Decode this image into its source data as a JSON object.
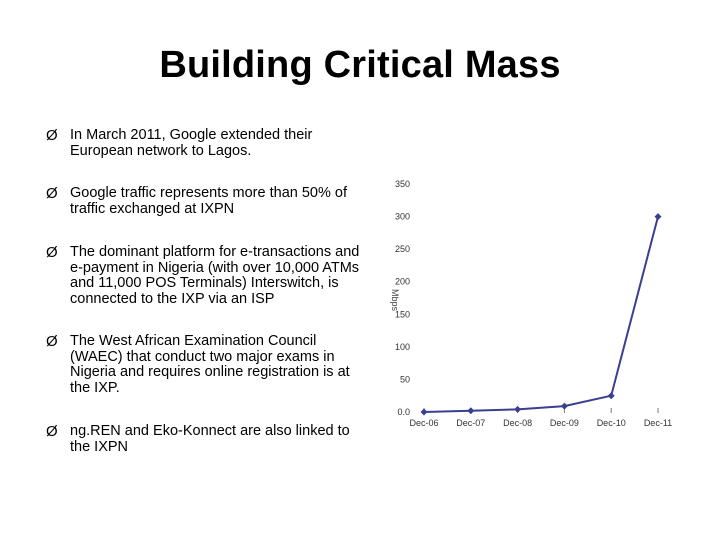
{
  "title": "Building Critical Mass",
  "bullet_marker": "Ø",
  "bullets": [
    "In March 2011, Google extended their European network to Lagos.",
    "Google traffic represents more than 50% of traffic exchanged at IXPN",
    "The dominant platform for e-transactions and e-payment in Nigeria (with over 10,000 ATMs and 11,000 POS Terminals) Interswitch, is connected to the IXP via an ISP",
    "The West African Examination Council (WAEC) that conduct two major exams in Nigeria and requires online registration is at the IXP.",
    "ng.REN and Eko-Konnect are also linked to the IXPN"
  ],
  "chart_data": {
    "type": "line",
    "categories": [
      "Dec-06",
      "Dec-07",
      "Dec-08",
      "Dec-09",
      "Dec-10",
      "Dec-11"
    ],
    "series": [
      {
        "values": [
          0,
          2,
          4,
          9,
          25,
          300
        ]
      }
    ],
    "ylabel": "Mbps",
    "ylim": [
      0,
      350
    ],
    "yticks": [
      "0.0",
      "50",
      "100",
      "150",
      "200",
      "250",
      "300",
      "350"
    ],
    "line_color": "#3b3f8f",
    "grid": false
  }
}
